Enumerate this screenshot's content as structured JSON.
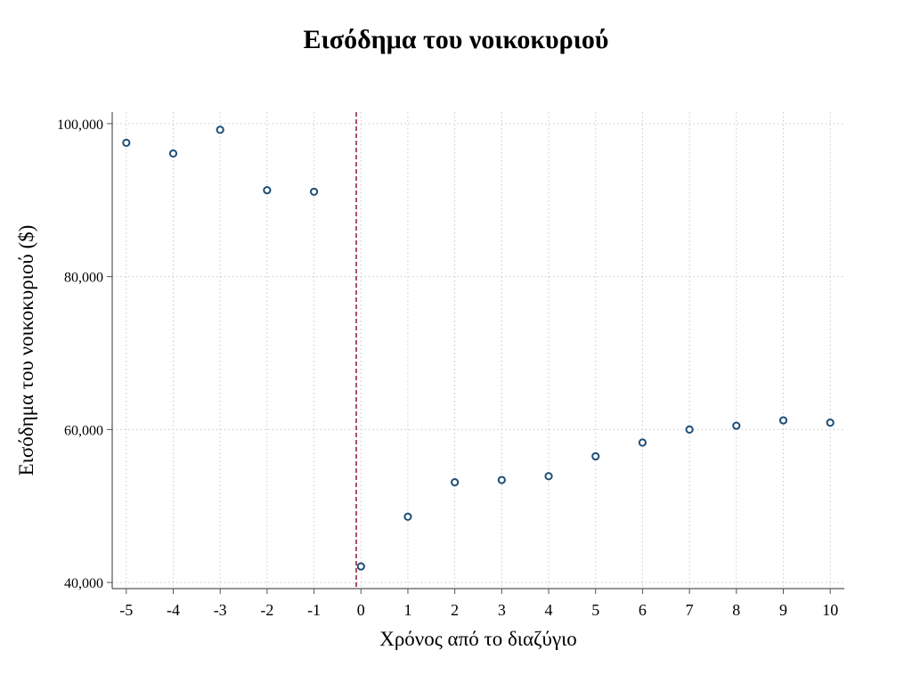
{
  "chart_data": {
    "type": "scatter",
    "title": "Εισόδημα του νοικοκυριού",
    "xlabel": "Χρόνος από το διαζύγιο",
    "ylabel": "Εισόδημα του νοικοκυριού ($)",
    "xlim": [
      -5.3,
      10.3
    ],
    "ylim": [
      39200,
      101500
    ],
    "x_ticks": [
      -5,
      -4,
      -3,
      -2,
      -1,
      0,
      1,
      2,
      3,
      4,
      5,
      6,
      7,
      8,
      9,
      10
    ],
    "x_tick_labels": [
      "-5",
      "-4",
      "-3",
      "-2",
      "-1",
      "0",
      "1",
      "2",
      "3",
      "4",
      "5",
      "6",
      "7",
      "8",
      "9",
      "10"
    ],
    "y_ticks": [
      40000,
      60000,
      80000,
      100000
    ],
    "y_tick_labels": [
      "40,000",
      "60,000",
      "80,000",
      "100,000"
    ],
    "grid": true,
    "reference_line": {
      "x": -0.1,
      "style": "dashed",
      "color": "#8b1a2b"
    },
    "marker_color": "#1f4e79",
    "series": [
      {
        "x": [
          -5,
          -4,
          -3,
          -2,
          -1,
          0,
          1,
          2,
          3,
          4,
          5,
          6,
          7,
          8,
          9,
          10
        ],
        "y": [
          97500,
          96100,
          99200,
          91300,
          91100,
          42100,
          48600,
          53100,
          53400,
          53900,
          56500,
          58300,
          60000,
          60500,
          61200,
          60900
        ]
      }
    ]
  }
}
